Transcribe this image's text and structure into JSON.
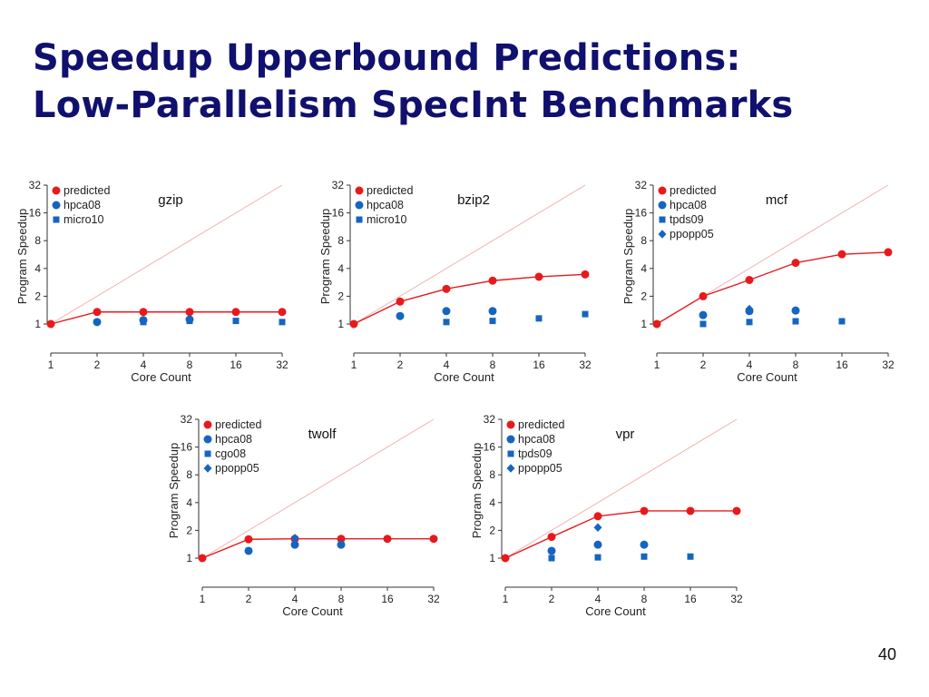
{
  "slide": {
    "title_line1": "Speedup Upperbound Predictions:",
    "title_line2": "Low-Parallelism SpecInt Benchmarks",
    "page_number": "40"
  },
  "colors": {
    "predicted": "#e8191c",
    "measured": "#1565c0",
    "ideal": "#f2b0b0",
    "axis": "#333333"
  },
  "chart_data": [
    {
      "type": "scatter",
      "title": "gzip",
      "xlabel": "Core Count",
      "ylabel": "Program Speedup",
      "x": [
        1,
        2,
        4,
        8,
        16,
        32
      ],
      "xticks": [
        "1",
        "2",
        "4",
        "8",
        "16",
        "32"
      ],
      "yticks": [
        "1",
        "2",
        "4",
        "8",
        "16",
        "32"
      ],
      "ylim": [
        1,
        32
      ],
      "scale": "log2",
      "legend": [
        "predicted",
        "hpca08",
        "micro10"
      ],
      "series": [
        {
          "name": "predicted",
          "marker": "circle-red",
          "line": true,
          "x": [
            1,
            2,
            4,
            8,
            16,
            32
          ],
          "values": [
            1.0,
            1.35,
            1.35,
            1.35,
            1.35,
            1.35
          ]
        },
        {
          "name": "hpca08",
          "marker": "circle-blue",
          "x": [
            2,
            4,
            8
          ],
          "values": [
            1.05,
            1.1,
            1.12
          ]
        },
        {
          "name": "micro10",
          "marker": "square",
          "x": [
            4,
            8,
            16,
            32
          ],
          "values": [
            1.05,
            1.08,
            1.08,
            1.05
          ]
        }
      ]
    },
    {
      "type": "scatter",
      "title": "bzip2",
      "xlabel": "Core Count",
      "ylabel": "Program Speedup",
      "x": [
        1,
        2,
        4,
        8,
        16,
        32
      ],
      "xticks": [
        "1",
        "2",
        "4",
        "8",
        "16",
        "32"
      ],
      "yticks": [
        "1",
        "2",
        "4",
        "8",
        "16",
        "32"
      ],
      "ylim": [
        1,
        32
      ],
      "scale": "log2",
      "legend": [
        "predicted",
        "hpca08",
        "micro10"
      ],
      "series": [
        {
          "name": "predicted",
          "marker": "circle-red",
          "line": true,
          "x": [
            1,
            2,
            4,
            8,
            16,
            32
          ],
          "values": [
            1.0,
            1.75,
            2.4,
            2.95,
            3.25,
            3.45
          ]
        },
        {
          "name": "hpca08",
          "marker": "circle-blue",
          "x": [
            2,
            4,
            8
          ],
          "values": [
            1.22,
            1.38,
            1.38
          ]
        },
        {
          "name": "micro10",
          "marker": "square",
          "x": [
            4,
            8,
            16,
            32
          ],
          "values": [
            1.05,
            1.08,
            1.15,
            1.28
          ]
        }
      ]
    },
    {
      "type": "scatter",
      "title": "mcf",
      "xlabel": "Core Count",
      "ylabel": "Program Speedup",
      "x": [
        1,
        2,
        4,
        8,
        16,
        32
      ],
      "xticks": [
        "1",
        "2",
        "4",
        "8",
        "16",
        "32"
      ],
      "yticks": [
        "1",
        "2",
        "4",
        "8",
        "16",
        "32"
      ],
      "ylim": [
        1,
        32
      ],
      "scale": "log2",
      "legend": [
        "predicted",
        "hpca08",
        "tpds09",
        "ppopp05"
      ],
      "series": [
        {
          "name": "predicted",
          "marker": "circle-red",
          "line": true,
          "x": [
            1,
            2,
            4,
            8,
            16,
            32
          ],
          "values": [
            1.0,
            2.0,
            3.0,
            4.6,
            5.7,
            6.0
          ]
        },
        {
          "name": "hpca08",
          "marker": "circle-blue",
          "x": [
            2,
            4,
            8
          ],
          "values": [
            1.25,
            1.38,
            1.4
          ]
        },
        {
          "name": "tpds09",
          "marker": "square",
          "x": [
            2,
            4,
            8,
            16
          ],
          "values": [
            1.0,
            1.05,
            1.07,
            1.07
          ]
        },
        {
          "name": "ppopp05",
          "marker": "diamond",
          "x": [
            4
          ],
          "values": [
            1.45
          ]
        }
      ]
    },
    {
      "type": "scatter",
      "title": "twolf",
      "xlabel": "Core Count",
      "ylabel": "Program Speedup",
      "x": [
        1,
        2,
        4,
        8,
        16,
        32
      ],
      "xticks": [
        "1",
        "2",
        "4",
        "8",
        "16",
        "32"
      ],
      "yticks": [
        "1",
        "2",
        "4",
        "8",
        "16",
        "32"
      ],
      "ylim": [
        1,
        32
      ],
      "scale": "log2",
      "legend": [
        "predicted",
        "hpca08",
        "cgo08",
        "ppopp05"
      ],
      "series": [
        {
          "name": "predicted",
          "marker": "circle-red",
          "line": true,
          "x": [
            1,
            2,
            4,
            8,
            16,
            32
          ],
          "values": [
            1.0,
            1.6,
            1.62,
            1.62,
            1.62,
            1.62
          ]
        },
        {
          "name": "hpca08",
          "marker": "circle-blue",
          "x": [
            2,
            4,
            8
          ],
          "values": [
            1.2,
            1.4,
            1.4
          ]
        },
        {
          "name": "cgo08",
          "marker": "square",
          "x": [],
          "values": []
        },
        {
          "name": "ppopp05",
          "marker": "diamond",
          "x": [
            4
          ],
          "values": [
            1.65
          ]
        }
      ]
    },
    {
      "type": "scatter",
      "title": "vpr",
      "xlabel": "Core Count",
      "ylabel": "Program Speedup",
      "x": [
        1,
        2,
        4,
        8,
        16,
        32
      ],
      "xticks": [
        "1",
        "2",
        "4",
        "8",
        "16",
        "32"
      ],
      "yticks": [
        "1",
        "2",
        "4",
        "8",
        "16",
        "32"
      ],
      "ylim": [
        1,
        32
      ],
      "scale": "log2",
      "legend": [
        "predicted",
        "hpca08",
        "tpds09",
        "ppopp05"
      ],
      "series": [
        {
          "name": "predicted",
          "marker": "circle-red",
          "line": true,
          "x": [
            1,
            2,
            4,
            8,
            16,
            32
          ],
          "values": [
            1.0,
            1.7,
            2.85,
            3.25,
            3.25,
            3.25
          ]
        },
        {
          "name": "hpca08",
          "marker": "circle-blue",
          "x": [
            2,
            4,
            8
          ],
          "values": [
            1.2,
            1.4,
            1.4
          ]
        },
        {
          "name": "tpds09",
          "marker": "square",
          "x": [
            2,
            4,
            8,
            16
          ],
          "values": [
            1.0,
            1.02,
            1.04,
            1.04
          ]
        },
        {
          "name": "ppopp05",
          "marker": "diamond",
          "x": [
            4
          ],
          "values": [
            2.15
          ]
        }
      ]
    }
  ]
}
